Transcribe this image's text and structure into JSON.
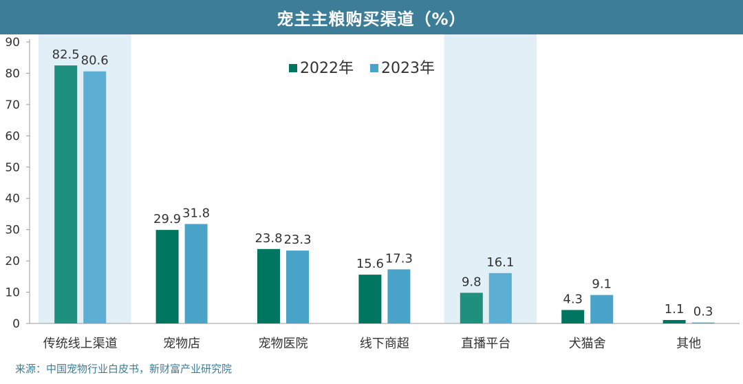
{
  "title": "宠主主粮购买渠道（%）",
  "source": "来源：中国宠物行业白皮书，新财富产业研究院",
  "colors": {
    "title_bg": "#3d7d97",
    "series_2022": "#00755f",
    "series_2023": "#4aa3c9",
    "highlight_band": "#e1eff6",
    "highlight_2022": "#1f8f7e",
    "highlight_2023": "#5caed3"
  },
  "chart_data": {
    "type": "bar",
    "title": "宠主主粮购买渠道（%）",
    "categories": [
      "传统线上渠道",
      "宠物店",
      "宠物医院",
      "线下商超",
      "直播平台",
      "犬猫舍",
      "其他"
    ],
    "series": [
      {
        "name": "2022年",
        "values": [
          82.5,
          29.9,
          23.8,
          15.6,
          9.8,
          4.3,
          1.1
        ]
      },
      {
        "name": "2023年",
        "values": [
          80.6,
          31.8,
          23.3,
          17.3,
          16.1,
          9.1,
          0.3
        ]
      }
    ],
    "highlighted_categories": [
      "传统线上渠道",
      "直播平台"
    ],
    "ylim": [
      0,
      90
    ],
    "yticks": [
      0,
      10,
      20,
      30,
      40,
      50,
      60,
      70,
      80,
      90
    ],
    "legend_position": "top-center",
    "grid": false
  }
}
